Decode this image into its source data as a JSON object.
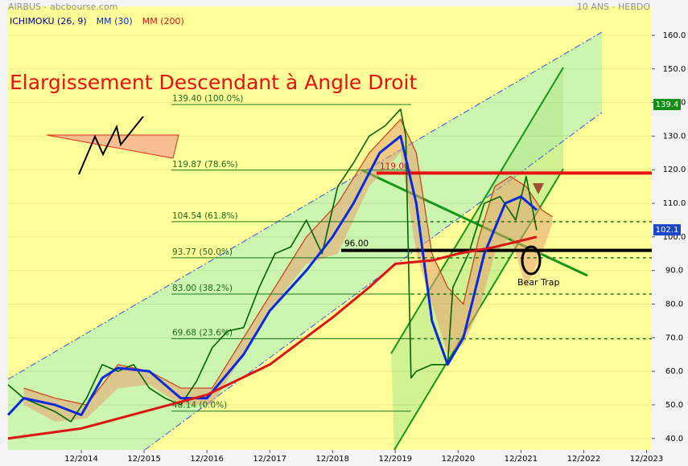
{
  "chart_data": {
    "type": "line",
    "title": "AIRBUS - abcbourse.com",
    "subtitle": "10 ANS - HEBDO",
    "annotation": "Elargissement Descendant à Angle Droit",
    "pattern_label": "Bear Trap",
    "xlim": [
      "10/2013",
      "01/2024"
    ],
    "xticks": [
      "12/2014",
      "12/2015",
      "12/2016",
      "12/2017",
      "12/2018",
      "12/2019",
      "12/2020",
      "12/2021",
      "12/2022",
      "12/2023"
    ],
    "ylim": [
      36.6,
      168.6
    ],
    "yticks": [
      {
        "value": 40,
        "label": "40.0"
      },
      {
        "value": 50,
        "label": "50.0"
      },
      {
        "value": 60,
        "label": "60.0"
      },
      {
        "value": 70,
        "label": "70.0"
      },
      {
        "value": 80,
        "label": "80.0"
      },
      {
        "value": 90,
        "label": "90.0"
      },
      {
        "value": 100,
        "label": "100.0"
      },
      {
        "value": 110,
        "label": "110.0"
      },
      {
        "value": 120,
        "label": "120.0"
      },
      {
        "value": 130,
        "label": "130.0"
      },
      {
        "value": 140,
        "label": "140.0"
      },
      {
        "value": 150,
        "label": "150.0"
      },
      {
        "value": 160,
        "label": "160.0"
      }
    ],
    "ichimoku": {
      "name": "ICHIMOKU (26, 9)",
      "color": "#000080",
      "fill": "#e8a070",
      "x": [
        "01/2014",
        "07/2014",
        "01/2015",
        "07/2015",
        "01/2016",
        "07/2016",
        "01/2017",
        "07/2017",
        "01/2018",
        "07/2018",
        "01/2019",
        "07/2019",
        "01/2020",
        "04/2020",
        "07/2020",
        "10/2020",
        "01/2021",
        "04/2021",
        "07/2021",
        "10/2021",
        "01/2022",
        "04/2022",
        "06/2022"
      ],
      "upper": [
        55,
        52,
        50,
        62,
        60,
        55,
        55,
        70,
        85,
        100,
        110,
        125,
        135,
        125,
        95,
        85,
        80,
        100,
        115,
        118,
        115,
        108,
        106
      ],
      "lower": [
        50,
        45,
        46,
        55,
        56,
        50,
        50,
        65,
        80,
        92,
        95,
        115,
        125,
        95,
        80,
        65,
        68,
        78,
        95,
        100,
        85,
        95,
        104
      ]
    },
    "series": [
      {
        "color": "#006400",
        "x": [
          "10/2013",
          "01/2014",
          "04/2014",
          "07/2014",
          "10/2014",
          "01/2015",
          "04/2015",
          "07/2015",
          "10/2015",
          "01/2016",
          "04/2016",
          "07/2016",
          "10/2016",
          "01/2017",
          "04/2017",
          "07/2017",
          "10/2017",
          "01/2018",
          "04/2018",
          "07/2018",
          "10/2018",
          "01/2019",
          "04/2019",
          "07/2019",
          "10/2019",
          "01/2020",
          "02/2020",
          "03/2020",
          "04/2020",
          "07/2020",
          "10/2020",
          "11/2020",
          "02/2021",
          "05/2021",
          "08/2021",
          "11/2021",
          "01/2022",
          "03/2022"
        ],
        "values": [
          56,
          52,
          50,
          48,
          45,
          52,
          62,
          60,
          62,
          55,
          52,
          50,
          57,
          67,
          72,
          73,
          85,
          95,
          97,
          105,
          95,
          115,
          122,
          130,
          133,
          138,
          130,
          58,
          60,
          62,
          62,
          85,
          95,
          110,
          112,
          105,
          118,
          102
        ]
      },
      {
        "name": "MM (30)",
        "color": "#0a28dc",
        "x": [
          "10/2013",
          "01/2014",
          "07/2014",
          "12/2014",
          "04/2015",
          "07/2015",
          "01/2016",
          "07/2016",
          "12/2016",
          "07/2017",
          "12/2017",
          "07/2018",
          "12/2018",
          "04/2019",
          "09/2019",
          "01/2020",
          "04/2020",
          "07/2020",
          "10/2020",
          "01/2021",
          "05/2021",
          "09/2021",
          "12/2021",
          "03/2022"
        ],
        "values": [
          47,
          52,
          50,
          47,
          58,
          61,
          60,
          52,
          52,
          65,
          78,
          90,
          100,
          110,
          125,
          130,
          110,
          75,
          62,
          70,
          95,
          110,
          112,
          108
        ]
      },
      {
        "name": "MM (200)",
        "color": "#dc1414",
        "x": [
          "10/2013",
          "12/2014",
          "12/2015",
          "12/2016",
          "12/2017",
          "12/2018",
          "07/2019",
          "12/2019",
          "07/2020",
          "12/2020",
          "07/2021",
          "03/2022"
        ],
        "values": [
          40,
          43,
          48,
          53,
          62,
          76,
          85,
          92,
          93,
          95,
          97,
          100
        ]
      }
    ],
    "levels": [
      {
        "value": 139.4,
        "label": "139.40 (100.0%)",
        "dashed": false
      },
      {
        "value": 119.87,
        "label": "119.87 (78.6%)",
        "dashed": false
      },
      {
        "value": 104.54,
        "label": "104.54 (61.8%)",
        "dashed": true
      },
      {
        "value": 93.77,
        "label": "93.77 (50.0%)",
        "dashed": true
      },
      {
        "value": 83.0,
        "label": "83.00 (38.2%)",
        "dashed": true
      },
      {
        "value": 69.68,
        "label": "69.68 (23.6%)",
        "dashed": true
      },
      {
        "value": 48.14,
        "label": "48.14 (0.0%)",
        "dashed": false
      }
    ],
    "lines": [
      {
        "value": 119,
        "label": "119.00",
        "color": "#e81010"
      },
      {
        "value": 96,
        "label": "96.00",
        "color": "#000000"
      }
    ],
    "price_badges": [
      139.4,
      102.1
    ],
    "badge_colors": [
      "#128c12",
      "#1a46c8"
    ]
  }
}
